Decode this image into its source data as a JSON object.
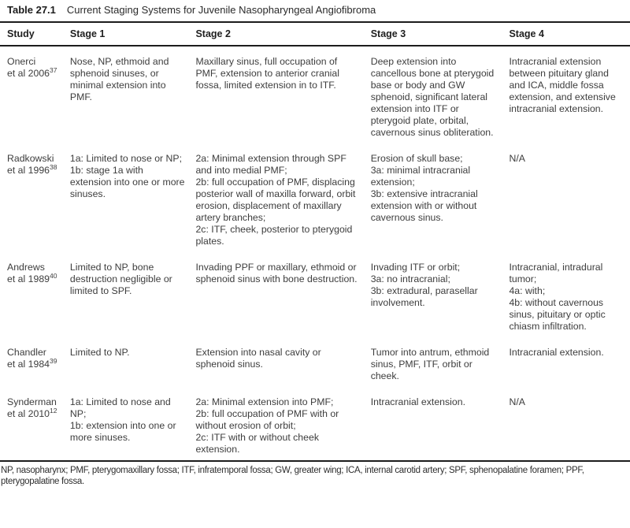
{
  "colors": {
    "rule": "#1c1c1c",
    "text": "#3d3d3d",
    "background": "#ffffff"
  },
  "table": {
    "label": "Table 27.1",
    "title": "Current Staging Systems for Juvenile Nasopharyngeal Angiofibroma",
    "columns": [
      "Study",
      "Stage 1",
      "Stage 2",
      "Stage 3",
      "Stage 4"
    ],
    "rows": [
      {
        "study_name": "Onerci",
        "study_etal": "et al 2006",
        "study_ref": "37",
        "stage1": "Nose, NP, ethmoid and sphenoid sinuses, or minimal extension into PMF.",
        "stage2": "Maxillary sinus, full occupation of PMF, extension to anterior cranial fossa, limited extension in to ITF.",
        "stage3": "Deep extension into cancellous bone at pterygoid base or body and GW sphenoid, significant lateral extension into ITF or pterygoid plate, orbital, cavernous sinus obliteration.",
        "stage4": "Intracranial extension between pituitary gland and ICA, middle fossa extension, and extensive intracranial extension."
      },
      {
        "study_name": "Radkowski",
        "study_etal": "et al 1996",
        "study_ref": "38",
        "stage1": "1a: Limited to nose or NP;\n1b: stage 1a with extension into one or more sinuses.",
        "stage2": "2a: Minimal extension through SPF and into medial PMF;\n2b: full occupation of PMF, displacing posterior wall of maxilla forward, orbit erosion, displacement of maxillary artery branches;\n2c: ITF, cheek, posterior to pterygoid plates.",
        "stage3": "Erosion of skull base;\n3a: minimal intracranial extension;\n3b: extensive intracranial extension with or without cavernous sinus.",
        "stage4": "N/A"
      },
      {
        "study_name": "Andrews",
        "study_etal": "et al 1989",
        "study_ref": "40",
        "stage1": "Limited to NP, bone destruction negligible or limited to SPF.",
        "stage2": "Invading PPF or maxillary, ethmoid or sphenoid sinus with bone destruction.",
        "stage3": "Invading ITF or orbit;\n3a: no intracranial;\n3b: extradural, parasellar involvement.",
        "stage4": "Intracranial, intradural tumor;\n4a: with;\n4b: without cavernous sinus, pituitary or optic chiasm infiltration."
      },
      {
        "study_name": "Chandler",
        "study_etal": "et al 1984",
        "study_ref": "39",
        "stage1": "Limited to NP.",
        "stage2": "Extension into nasal cavity or sphenoid sinus.",
        "stage3": "Tumor into antrum, ethmoid sinus, PMF, ITF, orbit or cheek.",
        "stage4": "Intracranial extension."
      },
      {
        "study_name": "Synderman",
        "study_etal": "et al 2010",
        "study_ref": "12",
        "stage1": "1a: Limited to nose and NP;\n1b: extension into one or more sinuses.",
        "stage2": "2a: Minimal extension into PMF;\n2b: full occupation of PMF with or without erosion of orbit;\n2c: ITF with or without cheek extension.",
        "stage3": "Intracranial extension.",
        "stage4": "N/A"
      }
    ],
    "footnote": "NP, nasopharynx; PMF, pterygomaxillary fossa; ITF, infratemporal fossa; GW, greater wing; ICA, internal carotid artery; SPF, sphenopalatine foramen; PPF, pterygopalatine fossa."
  }
}
